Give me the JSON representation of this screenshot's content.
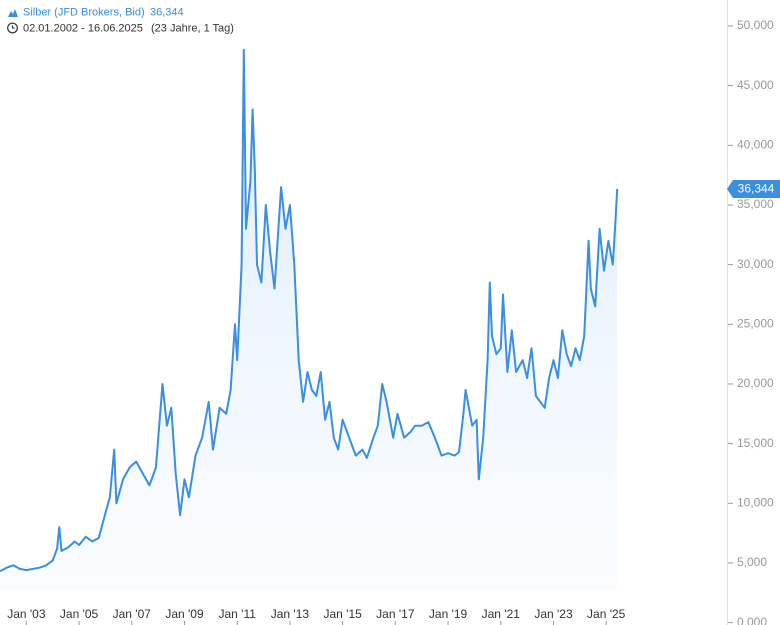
{
  "chart_data": {
    "type": "line",
    "header": {
      "instrument": "Silber (JFD Brokers, Bid)",
      "price": "36,344",
      "range": "02.01.2002 - 16.06.2025",
      "duration": "(23 Jahre, 1 Tag)"
    },
    "color": "#3a8fe0",
    "xlim": [
      "2002-01",
      "2029-08"
    ],
    "xticks": [
      {
        "value": "2003-01",
        "label": "Jan '03"
      },
      {
        "value": "2005-01",
        "label": "Jan '05"
      },
      {
        "value": "2007-01",
        "label": "Jan '07"
      },
      {
        "value": "2009-01",
        "label": "Jan '09"
      },
      {
        "value": "2011-01",
        "label": "Jan '11"
      },
      {
        "value": "2013-01",
        "label": "Jan '13"
      },
      {
        "value": "2015-01",
        "label": "Jan '15"
      },
      {
        "value": "2017-01",
        "label": "Jan '17"
      },
      {
        "value": "2019-01",
        "label": "Jan '19"
      },
      {
        "value": "2021-01",
        "label": "Jan '21"
      },
      {
        "value": "2023-01",
        "label": "Jan '23"
      },
      {
        "value": "2025-01",
        "label": "Jan '25"
      }
    ],
    "ylim": [
      0,
      50000
    ],
    "yticks": [
      {
        "value": 0,
        "label": "0,000"
      },
      {
        "value": 5000,
        "label": "5,000"
      },
      {
        "value": 10000,
        "label": "10,000"
      },
      {
        "value": 15000,
        "label": "15,000"
      },
      {
        "value": 20000,
        "label": "20,000"
      },
      {
        "value": 25000,
        "label": "25,000"
      },
      {
        "value": 30000,
        "label": "30,000"
      },
      {
        "value": 35000,
        "label": "35,000"
      },
      {
        "value": 40000,
        "label": "40,000"
      },
      {
        "value": 45000,
        "label": "45,000"
      },
      {
        "value": 50000,
        "label": "50,000"
      }
    ],
    "x": [
      "2002-01",
      "2002-04",
      "2002-07",
      "2002-10",
      "2003-01",
      "2003-04",
      "2003-07",
      "2003-10",
      "2004-01",
      "2004-03",
      "2004-04",
      "2004-05",
      "2004-08",
      "2004-11",
      "2005-01",
      "2005-04",
      "2005-07",
      "2005-10",
      "2005-12",
      "2006-03",
      "2006-05",
      "2006-06",
      "2006-09",
      "2006-12",
      "2007-03",
      "2007-06",
      "2007-09",
      "2007-12",
      "2008-03",
      "2008-05",
      "2008-07",
      "2008-09",
      "2008-11",
      "2009-01",
      "2009-03",
      "2009-06",
      "2009-09",
      "2009-12",
      "2010-02",
      "2010-05",
      "2010-08",
      "2010-10",
      "2010-12",
      "2011-01",
      "2011-03",
      "2011-04",
      "2011-05",
      "2011-07",
      "2011-08",
      "2011-09",
      "2011-10",
      "2011-12",
      "2012-02",
      "2012-04",
      "2012-06",
      "2012-09",
      "2012-11",
      "2013-01",
      "2013-03",
      "2013-05",
      "2013-07",
      "2013-09",
      "2013-11",
      "2014-01",
      "2014-03",
      "2014-05",
      "2014-07",
      "2014-09",
      "2014-11",
      "2015-01",
      "2015-04",
      "2015-07",
      "2015-10",
      "2015-12",
      "2016-03",
      "2016-05",
      "2016-07",
      "2016-09",
      "2016-12",
      "2017-02",
      "2017-05",
      "2017-08",
      "2017-10",
      "2018-01",
      "2018-04",
      "2018-07",
      "2018-10",
      "2019-01",
      "2019-04",
      "2019-06",
      "2019-08",
      "2019-09",
      "2019-12",
      "2020-02",
      "2020-03",
      "2020-05",
      "2020-07",
      "2020-08",
      "2020-09",
      "2020-11",
      "2021-01",
      "2021-02",
      "2021-04",
      "2021-06",
      "2021-08",
      "2021-11",
      "2022-01",
      "2022-03",
      "2022-05",
      "2022-07",
      "2022-09",
      "2022-11",
      "2023-01",
      "2023-03",
      "2023-05",
      "2023-07",
      "2023-09",
      "2023-11",
      "2024-01",
      "2024-03",
      "2024-05",
      "2024-06",
      "2024-08",
      "2024-10",
      "2024-12",
      "2025-02",
      "2025-04",
      "2025-05",
      "2025-06"
    ],
    "values": [
      4300,
      4600,
      4800,
      4500,
      4400,
      4500,
      4600,
      4800,
      5200,
      6200,
      8000,
      6000,
      6300,
      6800,
      6500,
      7200,
      6800,
      7100,
      8500,
      10500,
      14500,
      10000,
      12000,
      13000,
      13500,
      12500,
      11500,
      13000,
      20000,
      16500,
      18000,
      12500,
      9000,
      12000,
      10500,
      14000,
      15500,
      18500,
      14500,
      18000,
      17500,
      19500,
      25000,
      22000,
      30000,
      48000,
      33000,
      37000,
      43000,
      38000,
      30000,
      28500,
      35000,
      31000,
      28000,
      36500,
      33000,
      35000,
      30000,
      22000,
      18500,
      21000,
      19500,
      19000,
      21000,
      17000,
      18500,
      15500,
      14500,
      17000,
      15500,
      14000,
      14500,
      13800,
      15500,
      16500,
      20000,
      18500,
      15500,
      17500,
      15500,
      16000,
      16500,
      16500,
      16800,
      15500,
      14000,
      14200,
      14000,
      14300,
      17500,
      19500,
      16500,
      17000,
      12000,
      15500,
      22000,
      28500,
      24000,
      22500,
      23000,
      27500,
      21000,
      24500,
      21000,
      22000,
      20500,
      23000,
      19000,
      18500,
      18000,
      20500,
      22000,
      20500,
      24500,
      22500,
      21500,
      23000,
      22000,
      24000,
      32000,
      28000,
      26500,
      33000,
      29500,
      32000,
      30000,
      33000,
      36344
    ]
  }
}
